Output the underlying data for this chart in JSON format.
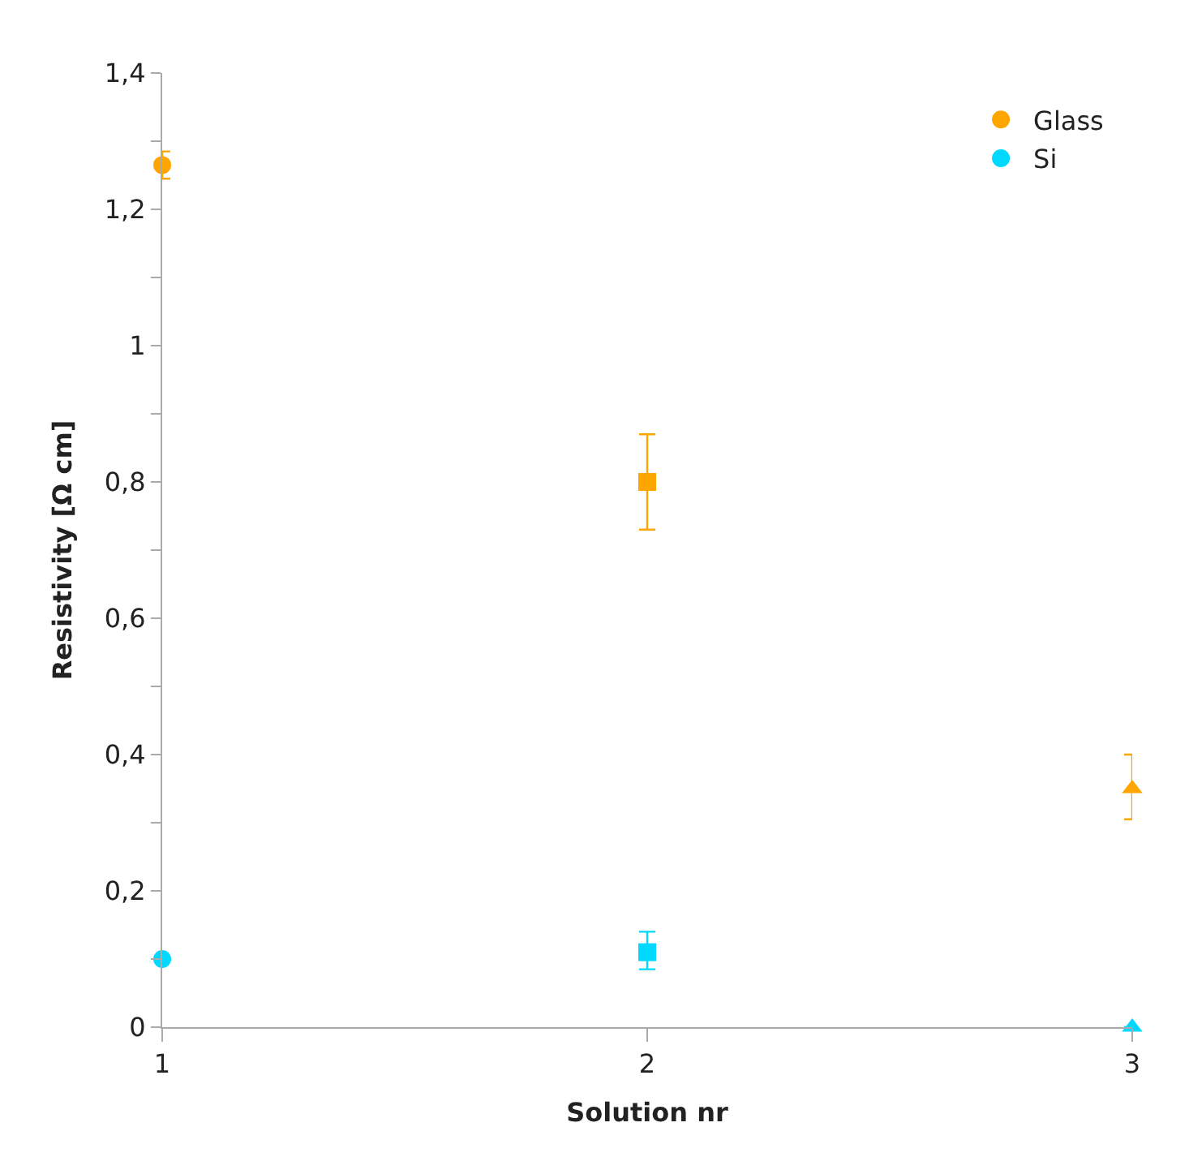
{
  "chart_data": {
    "type": "scatter",
    "xlabel": "Solution nr",
    "ylabel": "Resistivity [Ω cm]",
    "x": [
      1,
      2,
      3
    ],
    "series": [
      {
        "name": "Glass",
        "color": "#ffa500",
        "values": [
          1.265,
          0.8,
          0.35
        ],
        "errors": [
          0.02,
          0.07,
          [
            0.305,
            0.4
          ]
        ],
        "marker": [
          "circle",
          "square",
          "triangle"
        ]
      },
      {
        "name": "Si",
        "color": "#00d8ff",
        "values": [
          0.1,
          0.11,
          0.0
        ],
        "errors": [
          null,
          [
            0.085,
            0.14
          ],
          null
        ],
        "marker": [
          "circle",
          "square",
          "triangle"
        ]
      }
    ],
    "xlim": [
      1,
      3
    ],
    "xticks": [
      1,
      2,
      3
    ],
    "ylim": [
      0,
      1.4
    ],
    "yticks": [
      0,
      {
        "value": 0.1,
        "label": null
      },
      {
        "value": 0.2,
        "label": "0,2"
      },
      {
        "value": 0.3,
        "label": null
      },
      {
        "value": 0.4,
        "label": "0,4"
      },
      {
        "value": 0.5,
        "label": null
      },
      {
        "value": 0.6,
        "label": "0,6"
      },
      {
        "value": 0.7,
        "label": null
      },
      {
        "value": 0.8,
        "label": "0,8"
      },
      {
        "value": 0.9,
        "label": null
      },
      1,
      {
        "value": 1.1,
        "label": null
      },
      {
        "value": 1.2,
        "label": "1,2"
      },
      {
        "value": 1.3,
        "label": null
      },
      {
        "value": 1.4,
        "label": "1,4"
      }
    ],
    "legend": "top right"
  }
}
